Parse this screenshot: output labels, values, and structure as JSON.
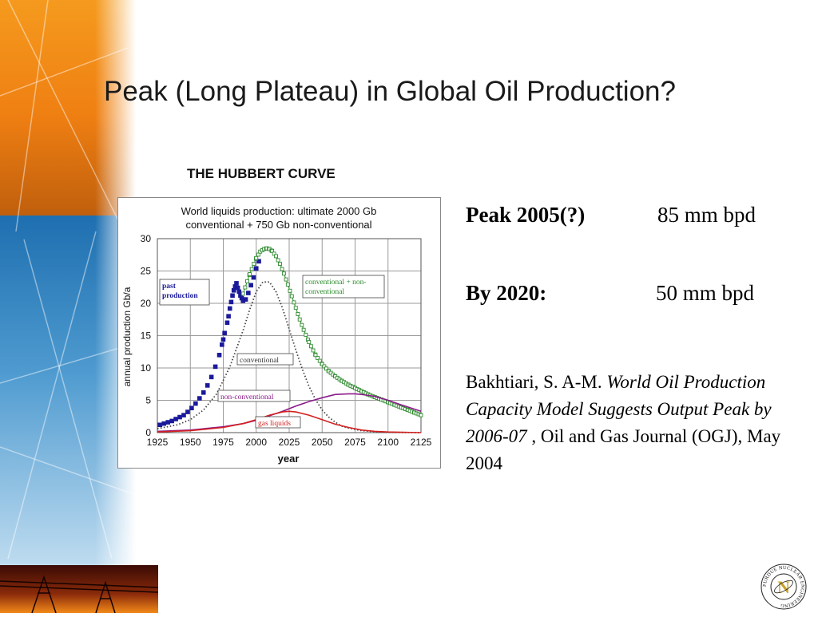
{
  "slide": {
    "title": "Peak (Long Plateau) in Global Oil Production?",
    "caption": "THE HUBBERT CURVE",
    "peak_label": "Peak  2005(?)",
    "peak_value": "85 mm bpd",
    "by2020_label": "By 2020:",
    "by2020_value": "50 mm bpd",
    "citation": {
      "author": "Bakhtiari, S. A-M. ",
      "title": "World Oil Production Capacity Model Suggests Output Peak by 2006-07",
      "rest": " , Oil and Gas Journal (OGJ), May 2004"
    },
    "logo_text": "PURDUE NUCLEAR ENGINEERING"
  },
  "chart_data": {
    "type": "line",
    "title": "World liquids production: ultimate 2000 Gb conventional + 750 Gb non-conventional",
    "title_lines": [
      "World liquids production: ultimate 2000 Gb",
      "conventional + 750 Gb non-conventional"
    ],
    "xlabel": "year",
    "ylabel": "annual production  Gb/a",
    "xlim": [
      1925,
      2125
    ],
    "ylim": [
      0,
      30
    ],
    "xticks": [
      1925,
      1950,
      1975,
      2000,
      2025,
      2050,
      2075,
      2100,
      2125
    ],
    "yticks": [
      0,
      5,
      10,
      15,
      20,
      25,
      30
    ],
    "grid": true,
    "series": [
      {
        "name": "past production",
        "color": "#1a1a9a",
        "style": "markers",
        "x": [
          1927,
          1930,
          1933,
          1936,
          1939,
          1942,
          1945,
          1948,
          1951,
          1954,
          1957,
          1960,
          1963,
          1966,
          1969,
          1972,
          1974,
          1975,
          1976,
          1978,
          1979,
          1980,
          1981,
          1982,
          1983,
          1984,
          1985,
          1986,
          1987,
          1988,
          1989,
          1990,
          1992,
          1994,
          1996,
          1998,
          2000,
          2002
        ],
        "y": [
          1.2,
          1.4,
          1.6,
          1.8,
          2.1,
          2.4,
          2.7,
          3.2,
          3.8,
          4.5,
          5.3,
          6.2,
          7.3,
          8.6,
          10.2,
          12.0,
          13.6,
          14.4,
          15.4,
          17.0,
          18.0,
          19.2,
          20.2,
          21.2,
          22.0,
          22.6,
          23.1,
          22.4,
          21.8,
          21.2,
          20.8,
          20.4,
          20.6,
          21.6,
          22.8,
          24.0,
          25.4,
          26.5
        ]
      },
      {
        "name": "conventional + non-conventional",
        "color": "#2e8b2e",
        "style": "markers-open",
        "x": [
          1990,
          1995,
          2000,
          2003,
          2006,
          2008,
          2010,
          2012,
          2015,
          2018,
          2021,
          2024,
          2027,
          2030,
          2033,
          2036,
          2040,
          2045,
          2050,
          2055,
          2060,
          2065,
          2070,
          2075,
          2080,
          2085,
          2090,
          2095,
          2100,
          2105,
          2110,
          2115,
          2120,
          2125
        ],
        "y": [
          21.5,
          24.5,
          27.0,
          28.0,
          28.4,
          28.5,
          28.4,
          28.1,
          27.3,
          26.1,
          24.6,
          22.9,
          21.1,
          19.3,
          17.5,
          15.9,
          14.0,
          12.0,
          10.6,
          9.5,
          8.7,
          8.0,
          7.4,
          6.9,
          6.4,
          5.9,
          5.5,
          5.1,
          4.7,
          4.3,
          3.9,
          3.5,
          3.1,
          2.7
        ]
      },
      {
        "name": "conventional",
        "color": "#444444",
        "style": "dotted",
        "x": [
          1925,
          1940,
          1950,
          1960,
          1970,
          1980,
          1990,
          1995,
          2000,
          2005,
          2010,
          2015,
          2020,
          2025,
          2030,
          2035,
          2040,
          2045,
          2050,
          2055,
          2060,
          2065,
          2070,
          2080,
          2090,
          2100,
          2110,
          2125
        ],
        "y": [
          0.6,
          1.2,
          2.0,
          3.5,
          6.0,
          10.2,
          15.8,
          19.0,
          21.8,
          23.3,
          23.3,
          21.8,
          19.2,
          16.0,
          12.8,
          9.8,
          7.2,
          5.1,
          3.5,
          2.4,
          1.6,
          1.0,
          0.7,
          0.3,
          0.15,
          0.05,
          0.02,
          0.0
        ]
      },
      {
        "name": "non-conventional",
        "color": "#8a1a8a",
        "style": "line",
        "x": [
          1925,
          1950,
          1975,
          1990,
          2000,
          2010,
          2020,
          2030,
          2040,
          2050,
          2060,
          2070,
          2075,
          2080,
          2090,
          2100,
          2110,
          2125
        ],
        "y": [
          0.2,
          0.4,
          0.9,
          1.4,
          1.9,
          2.6,
          3.3,
          4.1,
          4.8,
          5.4,
          5.9,
          6.0,
          6.0,
          5.9,
          5.6,
          5.0,
          4.3,
          3.3
        ]
      },
      {
        "name": "gas liquids",
        "color": "#d42020",
        "style": "line",
        "x": [
          1925,
          1950,
          1975,
          1990,
          2000,
          2010,
          2020,
          2025,
          2030,
          2040,
          2050,
          2060,
          2070,
          2080,
          2090,
          2100,
          2125
        ],
        "y": [
          0.1,
          0.3,
          0.8,
          1.4,
          2.0,
          2.7,
          3.2,
          3.3,
          3.2,
          2.7,
          2.0,
          1.3,
          0.8,
          0.4,
          0.2,
          0.1,
          0.0
        ]
      }
    ],
    "annotations": [
      {
        "text_lines": [
          "past",
          "production"
        ],
        "color": "#1a1a9a"
      },
      {
        "text_lines": [
          "conventional + non-",
          "conventional"
        ],
        "color": "#2e8b2e"
      },
      {
        "text_lines": [
          "conventional"
        ],
        "color": "#333333"
      },
      {
        "text_lines": [
          "non-conventional"
        ],
        "color": "#8a1a8a"
      },
      {
        "text_lines": [
          "gas liquids"
        ],
        "color": "#d42020"
      }
    ]
  }
}
